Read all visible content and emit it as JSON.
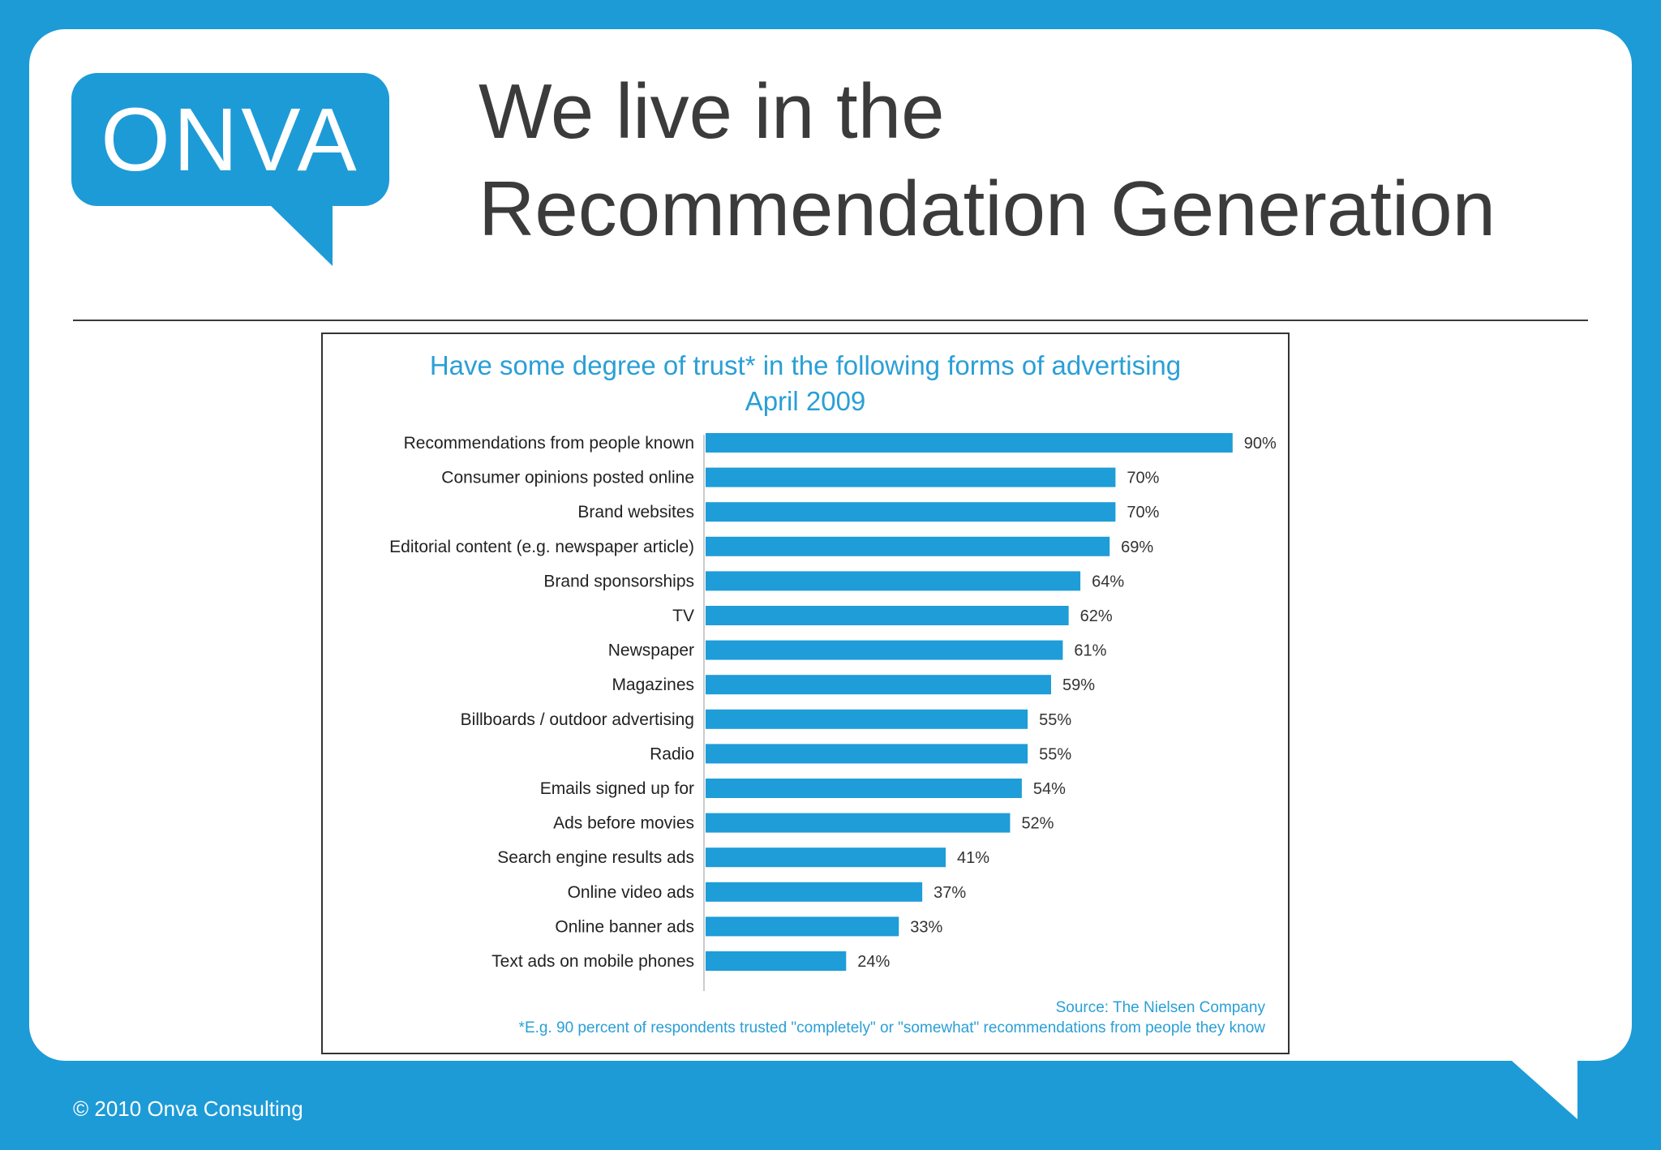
{
  "slide": {
    "headline_line1": "We live in the",
    "headline_line2": "Recommendation Generation",
    "footer": "© 2010 Onva Consulting"
  },
  "logo": {
    "text": "ONVA",
    "icon": "speech-bubble-logo",
    "color": "#1d9bd7"
  },
  "chart_data": {
    "type": "bar",
    "orientation": "horizontal",
    "title": "Have some degree of trust* in the following forms of advertising",
    "subtitle": "April 2009",
    "categories": [
      "Recommendations from people known",
      "Consumer opinions posted online",
      "Brand websites",
      "Editorial content (e.g. newspaper article)",
      "Brand sponsorships",
      "TV",
      "Newspaper",
      "Magazines",
      "Billboards / outdoor advertising",
      "Radio",
      "Emails signed up for",
      "Ads before movies",
      "Search engine results ads",
      "Online video ads",
      "Online banner ads",
      "Text ads on mobile phones"
    ],
    "values": [
      90,
      70,
      70,
      69,
      64,
      62,
      61,
      59,
      55,
      55,
      54,
      52,
      41,
      37,
      33,
      24
    ],
    "data_labels": [
      "90%",
      "70%",
      "70%",
      "69%",
      "64%",
      "62%",
      "61%",
      "59%",
      "55%",
      "55%",
      "54%",
      "52%",
      "41%",
      "37%",
      "33%",
      "24%"
    ],
    "xlim": [
      0,
      100
    ],
    "grid": false,
    "legend": "none",
    "bar_color": "#1e9dd8",
    "title_color": "#2a9fd6",
    "source": "Source: The Nielsen Company",
    "footnote": "*E.g. 90 percent of respondents trusted \"completely\" or \"somewhat\" recommendations from people they know"
  }
}
